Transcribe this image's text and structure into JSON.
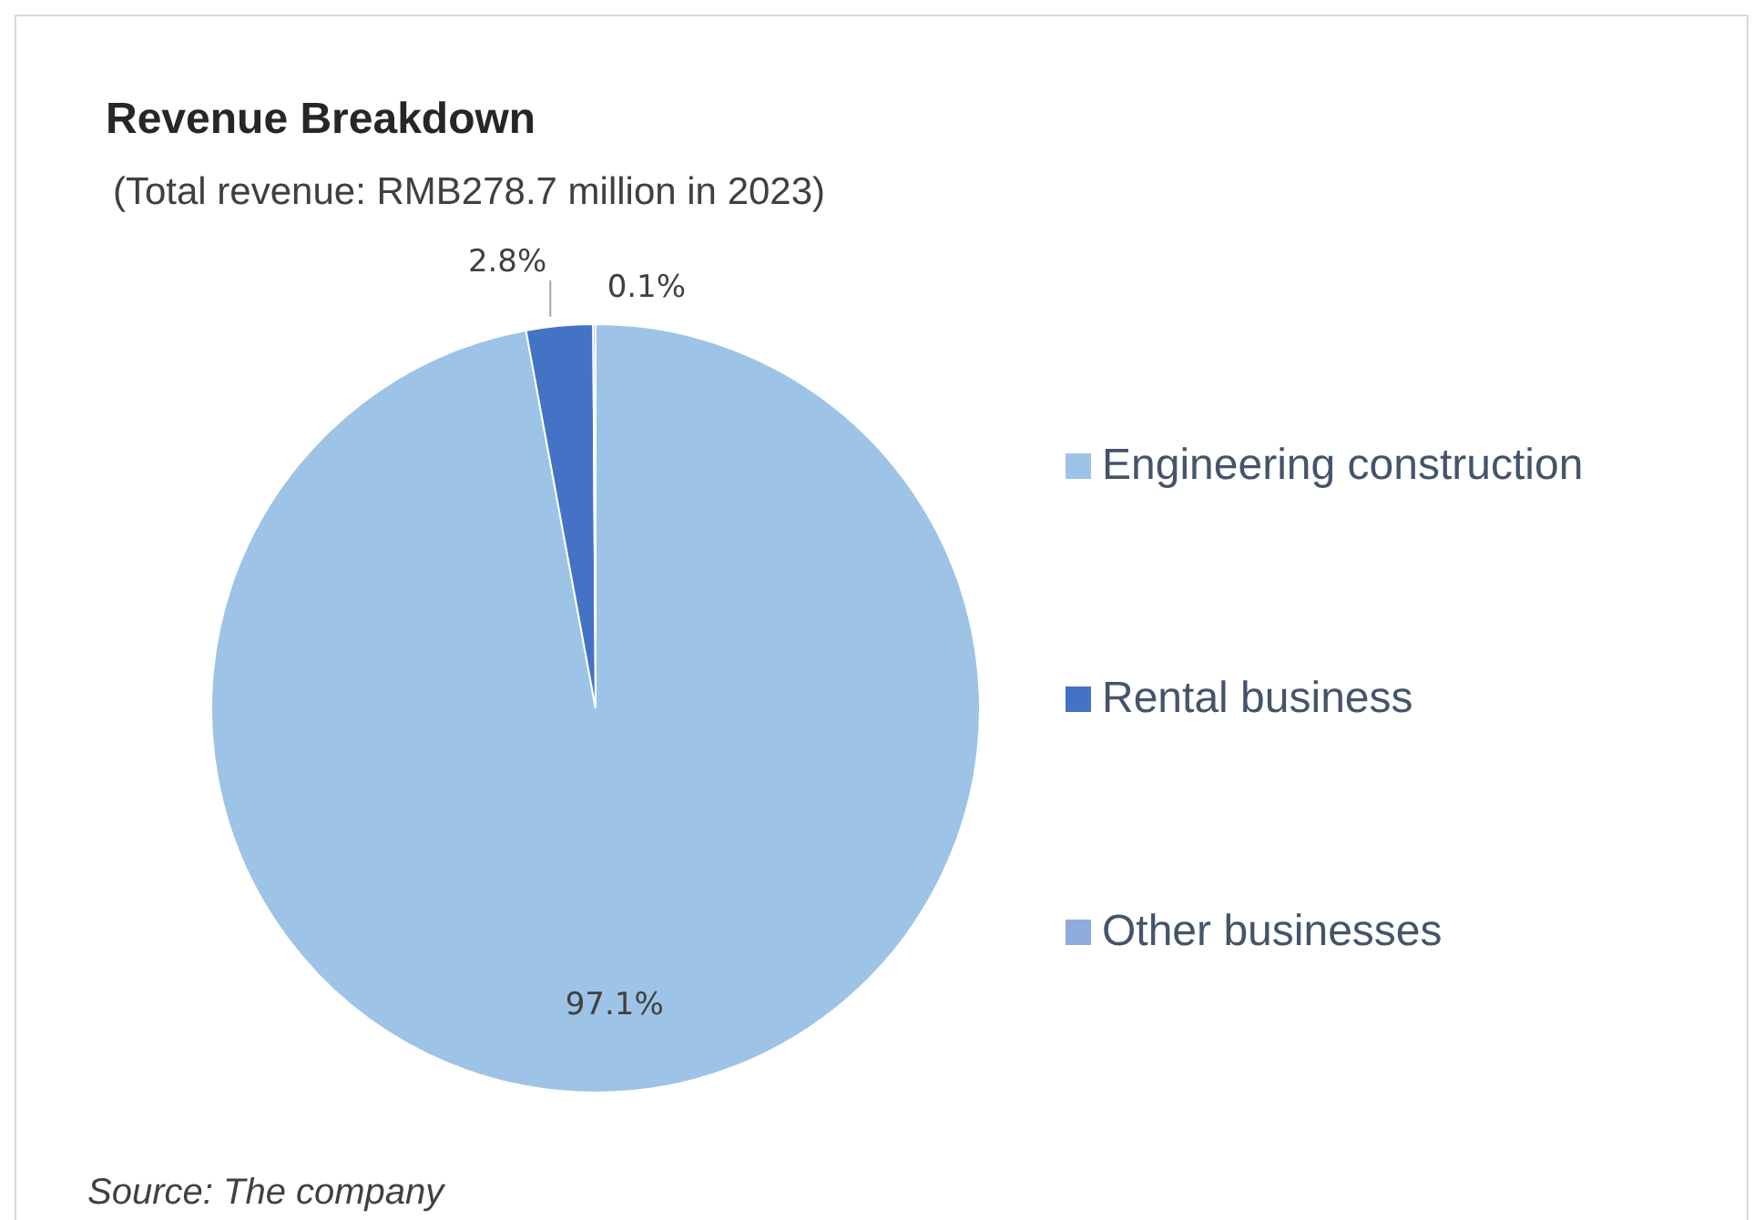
{
  "chart_data": {
    "type": "pie",
    "title": "Revenue Breakdown",
    "subtitle": "(Total revenue: RMB278.7 million in 2023)",
    "categories": [
      "Engineering construction",
      "Rental business",
      "Other businesses"
    ],
    "values": [
      97.1,
      2.8,
      0.1
    ],
    "colors": [
      "#9dc3e6",
      "#4472c4",
      "#8faadc"
    ],
    "value_labels": [
      "97.1%",
      "2.8%",
      "0.1%"
    ],
    "legend": "right",
    "annotations": [
      "Source: The company"
    ]
  }
}
